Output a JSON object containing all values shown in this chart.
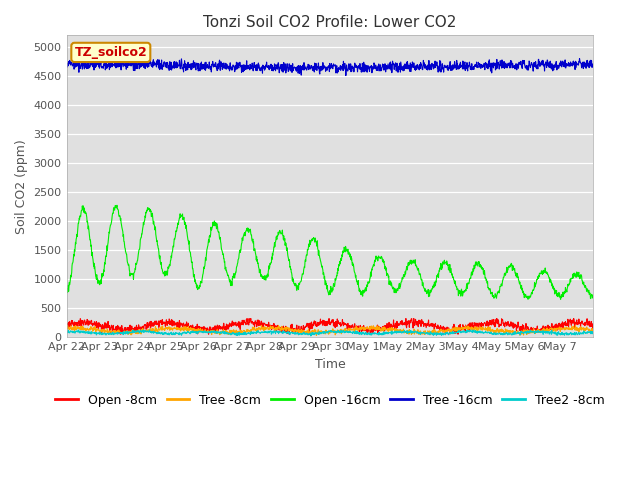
{
  "title": "Tonzi Soil CO2 Profile: Lower CO2",
  "xlabel": "Time",
  "ylabel": "Soil CO2 (ppm)",
  "ylim": [
    0,
    5200
  ],
  "yticks": [
    0,
    500,
    1000,
    1500,
    2000,
    2500,
    3000,
    3500,
    4000,
    4500,
    5000
  ],
  "xtick_labels": [
    "Apr 22",
    "Apr 23",
    "Apr 24",
    "Apr 25",
    "Apr 26",
    "Apr 27",
    "Apr 28",
    "Apr 29",
    "Apr 30",
    "May 1",
    "May 2",
    "May 3",
    "May 4",
    "May 5",
    "May 6",
    "May 7"
  ],
  "n_days": 16,
  "background_color": "#e0e0e0",
  "fig_background": "#ffffff",
  "title_fontsize": 11,
  "label_fontsize": 9,
  "tick_fontsize": 8,
  "legend_fontsize": 9,
  "series": {
    "open_8cm": {
      "color": "#ff0000",
      "label": "Open -8cm"
    },
    "tree_8cm": {
      "color": "#ffa500",
      "label": "Tree -8cm"
    },
    "open_16cm": {
      "color": "#00ee00",
      "label": "Open -16cm"
    },
    "tree_16cm": {
      "color": "#0000cc",
      "label": "Tree -16cm"
    },
    "tree2_8cm": {
      "color": "#00cccc",
      "label": "Tree2 -8cm"
    }
  },
  "watermark_text": "TZ_soilco2",
  "watermark_bg": "#ffffcc",
  "watermark_border": "#cc8800",
  "open16_peaks": [
    2190,
    2200,
    2270,
    2150,
    2030,
    1880,
    1840,
    1790,
    1590,
    1440,
    1340,
    1290,
    1270,
    1260,
    1190,
    1080
  ],
  "open16_mins": [
    800,
    940,
    1080,
    1100,
    850,
    960,
    1000,
    850,
    800,
    760,
    820,
    760,
    750,
    700,
    680,
    700
  ],
  "open8_base": 190,
  "open8_amp": 60,
  "tree8_base": 115,
  "tree8_amp": 35,
  "tree16_base": 4700,
  "tree16_noise": 45,
  "tree2_base": 75,
  "tree2_amp": 20
}
